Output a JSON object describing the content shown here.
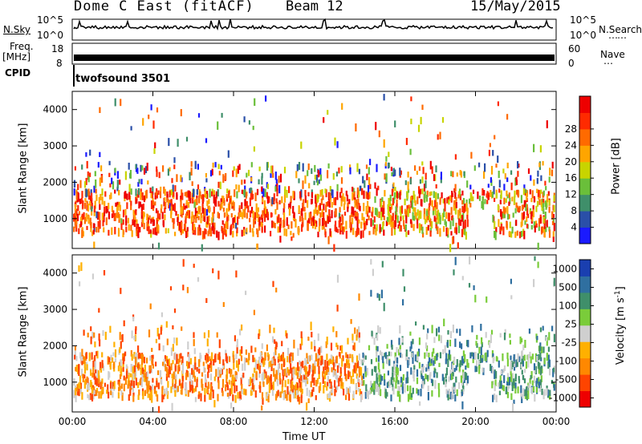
{
  "header": {
    "station": "Dome C East (fitACF)",
    "beam": "Beam 12",
    "date": "15/May/2015"
  },
  "status_panels": {
    "nsky_label": "N.Sky",
    "nsearch_label": "N.Search",
    "freq_label_line1": "Freq.",
    "freq_label_line2": "[MHz]",
    "nave_label": "Nave",
    "cpid_label": "CPID",
    "cpid_value": "twofsound 3501",
    "noise_ticks_left": [
      "10^5",
      "10^0"
    ],
    "noise_ticks_right": [
      "10^5",
      "10^0"
    ],
    "freq_ticks_left": [
      "18",
      "8"
    ],
    "nave_ticks_right": [
      "60",
      "0"
    ]
  },
  "colors": {
    "power_scale": [
      "#1a1aff",
      "#2a4fa8",
      "#3f8f6a",
      "#6abf3a",
      "#c8d400",
      "#ffa500",
      "#ff6a00",
      "#ff2a00",
      "#ee0000"
    ],
    "velocity_scale": [
      "#ee0000",
      "#ff4400",
      "#ff8800",
      "#ffb000",
      "#cfcfcf",
      "#7acc3a",
      "#3f8f6a",
      "#2f6fa0",
      "#1a3fb0"
    ]
  },
  "chart_data": [
    {
      "type": "heatmap",
      "quantity": "Power",
      "ylabel": "Slant Range [km]",
      "xlabel": "Time UT",
      "xlim": [
        "00:00",
        "00:00"
      ],
      "ylim": [
        180,
        4500
      ],
      "x_ticks": [
        "00:00",
        "04:00",
        "08:00",
        "12:00",
        "16:00",
        "20:00",
        "00:00"
      ],
      "y_ticks": [
        1000,
        2000,
        3000,
        4000
      ],
      "colorbar_label": "Power [dB]",
      "colorbar_ticks": [
        "4",
        "8",
        "12",
        "16",
        "20",
        "24",
        "28"
      ]
    },
    {
      "type": "heatmap",
      "quantity": "Velocity",
      "ylabel": "Slant Range [km]",
      "xlabel": "Time UT",
      "xlim": [
        "00:00",
        "00:00"
      ],
      "ylim": [
        180,
        4500
      ],
      "x_ticks": [
        "00:00",
        "04:00",
        "08:00",
        "12:00",
        "16:00",
        "20:00",
        "00:00"
      ],
      "y_ticks": [
        1000,
        2000,
        3000,
        4000
      ],
      "colorbar_label": "Velocity [m s^-1]",
      "colorbar_ticks": [
        "1000",
        "500",
        "100",
        "25",
        "-25",
        "-100",
        "-500",
        "-1000"
      ]
    }
  ]
}
